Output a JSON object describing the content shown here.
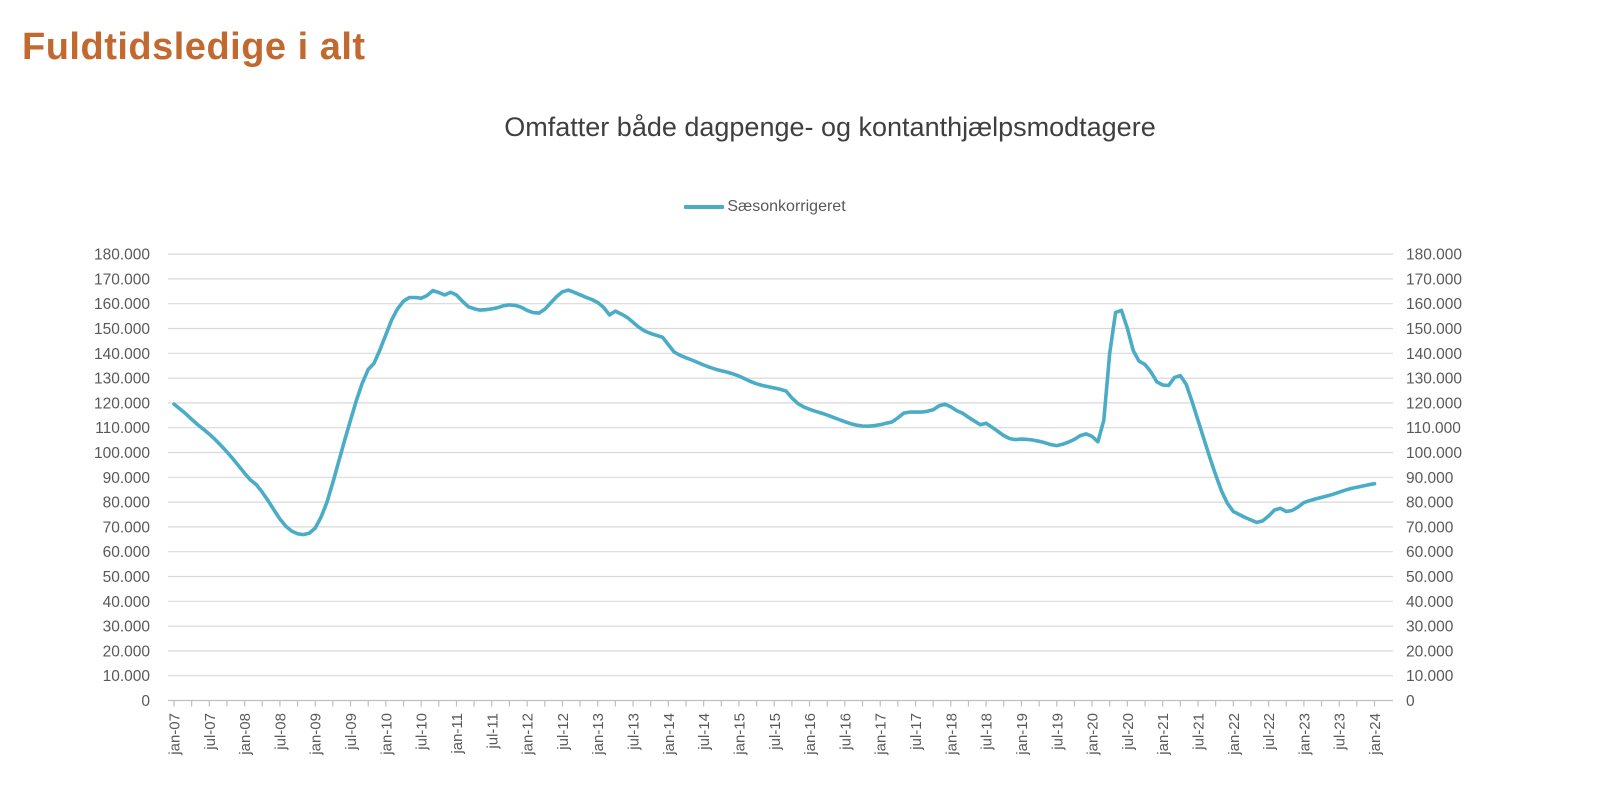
{
  "page": {
    "title": "Fuldtidsledige i alt"
  },
  "chart": {
    "subtitle": "Omfatter både dagpenge- og kontanthjælpsmodtagere",
    "legend": {
      "label": "Sæsonkorrigeret"
    },
    "colors": {
      "line": "#4BACC6",
      "title": "#C26930",
      "subtitle_text": "#3F3F3F",
      "axis_text": "#595959",
      "gridline": "#D9D9D9",
      "axis_line": "#BFBFBF"
    },
    "y_axis": {
      "tick_labels": [
        "180.000",
        "170.000",
        "160.000",
        "150.000",
        "140.000",
        "130.000",
        "120.000",
        "110.000",
        "100.000",
        "90.000",
        "80.000",
        "70.000",
        "60.000",
        "50.000",
        "40.000",
        "30.000",
        "20.000",
        "10.000",
        "0"
      ]
    },
    "x_axis": {
      "tick_labels": [
        "jan-07",
        "jul-07",
        "jan-08",
        "jul-08",
        "jan-09",
        "jul-09",
        "jan-10",
        "jul-10",
        "jan-11",
        "jul-11",
        "jan-12",
        "jul-12",
        "jan-13",
        "jul-13",
        "jan-14",
        "jul-14",
        "jan-15",
        "jul-15",
        "jan-16",
        "jul-16",
        "jan-17",
        "jul-17",
        "jan-18",
        "jul-18",
        "jan-19",
        "jul-19",
        "jan-20",
        "jul-20",
        "jan-21",
        "jul-21",
        "jan-22",
        "jul-22",
        "jan-23",
        "jul-23",
        "jan-24"
      ]
    }
  },
  "chart_data": {
    "type": "line",
    "title": "Fuldtidsledige i alt",
    "subtitle": "Omfatter både dagpenge- og kontanthjælpsmodtagere",
    "series_name": "Sæsonkorrigeret",
    "x_start": "jan-07",
    "x_end": "jan-24",
    "x_frequency": "monthly",
    "ylim": [
      0,
      180000
    ],
    "y_step": 10000,
    "grid": "horizontal",
    "legend_position": "top-center",
    "values": [
      119500,
      117600,
      115600,
      113400,
      111300,
      109400,
      107400,
      105200,
      102800,
      100200,
      97500,
      94600,
      91600,
      88900,
      87000,
      84000,
      80500,
      76800,
      73200,
      70300,
      68300,
      67200,
      66900,
      67500,
      69500,
      74000,
      80000,
      88000,
      96500,
      105000,
      113000,
      121000,
      128000,
      133500,
      136000,
      141500,
      147500,
      153500,
      158000,
      161000,
      162500,
      162500,
      162200,
      163300,
      165300,
      164500,
      163500,
      164600,
      163500,
      161000,
      158800,
      158000,
      157400,
      157600,
      157900,
      158400,
      159200,
      159500,
      159300,
      158600,
      157300,
      156400,
      156200,
      157800,
      160300,
      162800,
      164800,
      165500,
      164600,
      163600,
      162600,
      161700,
      160500,
      158500,
      155500,
      157000,
      155800,
      154500,
      152500,
      150500,
      149000,
      148000,
      147200,
      146500,
      143500,
      140500,
      139200,
      138200,
      137300,
      136300,
      135300,
      134400,
      133600,
      133000,
      132400,
      131700,
      130800,
      129700,
      128600,
      127700,
      127000,
      126500,
      126000,
      125500,
      124800,
      122000,
      119800,
      118400,
      117400,
      116600,
      115900,
      115100,
      114200,
      113300,
      112400,
      111600,
      111000,
      110700,
      110600,
      110800,
      111200,
      111800,
      112300,
      114000,
      115900,
      116300,
      116300,
      116300,
      116600,
      117200,
      118800,
      119500,
      118400,
      116900,
      115800,
      114200,
      112700,
      111200,
      111800,
      110200,
      108500,
      106800,
      105600,
      105200,
      105400,
      105300,
      105000,
      104500,
      103900,
      103200,
      102800,
      103300,
      104200,
      105300,
      106800,
      107500,
      106500,
      104300,
      113000,
      140000,
      156500,
      157300,
      150000,
      141000,
      136800,
      135500,
      132500,
      128500,
      127200,
      127000,
      130200,
      131000,
      127500,
      120500,
      113000,
      105500,
      98000,
      91000,
      84500,
      79500,
      76200,
      75000,
      73800,
      72800,
      71800,
      72400,
      74400,
      76800,
      77500,
      76200,
      76600,
      78000,
      79800,
      80600,
      81300,
      81900,
      82500,
      83200,
      84000,
      84800,
      85500,
      86000,
      86500,
      87000,
      87400
    ]
  }
}
